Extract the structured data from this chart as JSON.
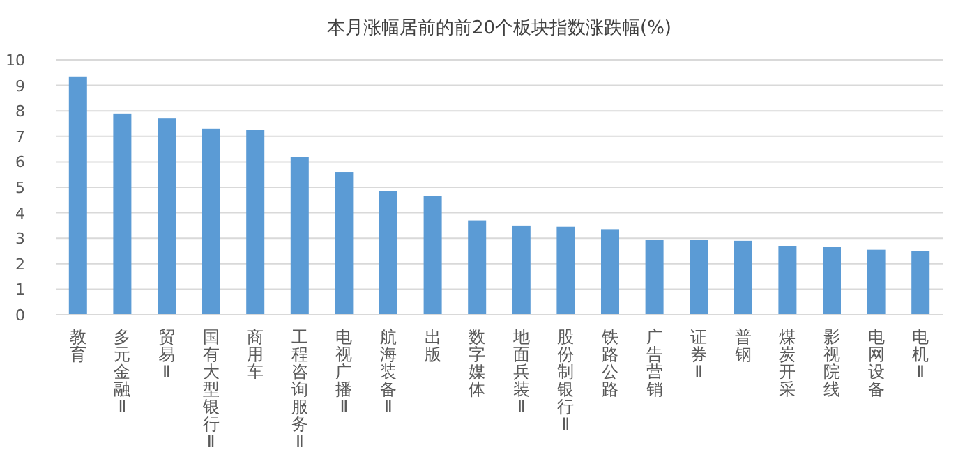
{
  "chart_data": {
    "type": "bar",
    "title": "本月涨幅居前的前20个板块指数涨跌幅(%)",
    "categories": [
      "教育",
      "多元金融Ⅱ",
      "贸易Ⅱ",
      "国有大型银行Ⅱ",
      "商用车",
      "工程咨询服务Ⅱ",
      "电视广播Ⅱ",
      "航海装备Ⅱ",
      "出版",
      "数字媒体",
      "地面兵装Ⅱ",
      "股份制银行Ⅱ",
      "铁路公路",
      "广告营销",
      "证券Ⅱ",
      "普钢",
      "煤炭开采",
      "影视院线",
      "电网设备",
      "电机Ⅱ"
    ],
    "values": [
      9.35,
      7.9,
      7.7,
      7.3,
      7.25,
      6.2,
      5.6,
      4.85,
      4.65,
      3.7,
      3.5,
      3.45,
      3.35,
      2.95,
      2.95,
      2.9,
      2.7,
      2.65,
      2.55,
      2.5
    ],
    "color": "#5b9bd5",
    "ylim": [
      0,
      10
    ],
    "yticks": [
      0,
      1,
      2,
      3,
      4,
      5,
      6,
      7,
      8,
      9,
      10
    ],
    "grid": "y"
  }
}
